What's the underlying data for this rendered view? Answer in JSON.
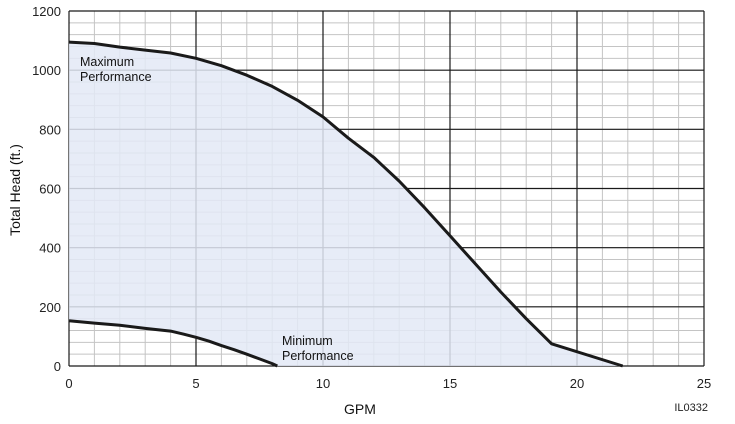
{
  "chart_data": {
    "type": "area",
    "title": "",
    "xlabel": "GPM",
    "ylabel": "Total Head (ft.)",
    "xlim": [
      0,
      25
    ],
    "ylim": [
      0,
      1200
    ],
    "x_ticks": [
      "0",
      "5",
      "10",
      "15",
      "20",
      "25"
    ],
    "y_ticks": [
      "0",
      "200",
      "400",
      "600",
      "800",
      "1000",
      "1200"
    ],
    "grid": true,
    "fill_color": "#e3e9f6",
    "line_color": "#1a1a1a",
    "series": [
      {
        "name": "Maximum Performance",
        "label_lines": [
          "Maximum",
          "Performance"
        ],
        "x": [
          0,
          1,
          2,
          3,
          4,
          5,
          6,
          7,
          8,
          9,
          10,
          11,
          12,
          13,
          14,
          15,
          16,
          17,
          18,
          19,
          20,
          21,
          21.8
        ],
        "y": [
          1095,
          1090,
          1078,
          1068,
          1058,
          1040,
          1015,
          983,
          945,
          898,
          842,
          770,
          705,
          625,
          535,
          440,
          345,
          250,
          160,
          75,
          0,
          0,
          0
        ]
      },
      {
        "name": "Minimum Performance",
        "label_lines": [
          "Minimum",
          "Performance"
        ],
        "x": [
          0,
          1,
          2,
          3,
          4,
          4.5,
          5,
          5.5,
          6,
          6.5,
          7,
          7.5,
          8,
          8.2
        ],
        "y": [
          153,
          145,
          138,
          127,
          118,
          108,
          97,
          84,
          69,
          55,
          40,
          24,
          8,
          0
        ]
      }
    ],
    "figure_id": "IL0332"
  }
}
